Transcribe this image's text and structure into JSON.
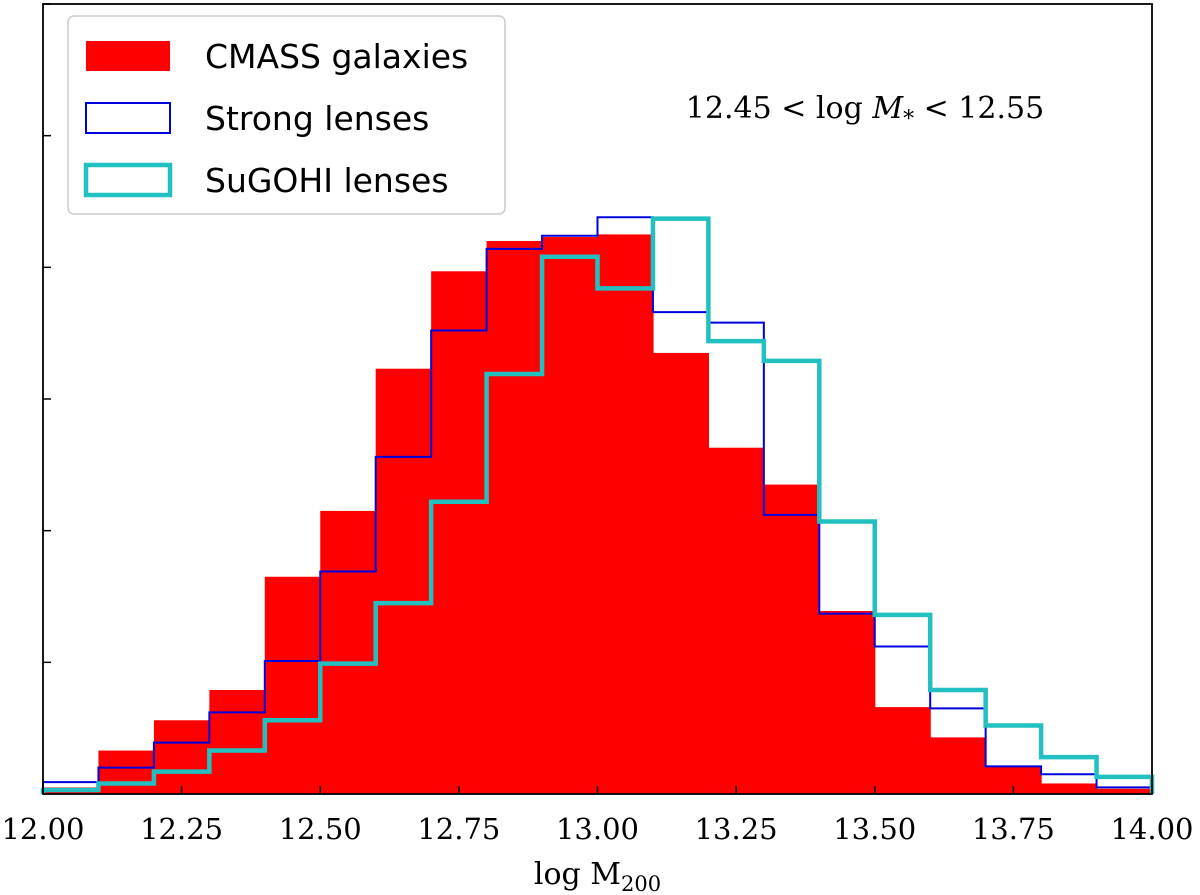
{
  "chart_data": {
    "type": "histogram",
    "xlabel": "log M",
    "xlabel_sub": "200",
    "ylabel": "",
    "xlim": [
      12.0,
      14.0
    ],
    "ylim": [
      0,
      0.6
    ],
    "x_ticks": [
      "12.00",
      "12.25",
      "12.50",
      "12.75",
      "13.00",
      "13.25",
      "13.50",
      "13.75",
      "14.00"
    ],
    "x_tick_values": [
      12.0,
      12.25,
      12.5,
      12.75,
      13.0,
      13.25,
      13.5,
      13.75,
      14.0
    ],
    "y_tick_values": [
      0.1,
      0.2,
      0.3,
      0.4,
      0.5,
      0.6
    ],
    "bin_edges": [
      12.0,
      12.1,
      12.2,
      12.3,
      12.4,
      12.5,
      12.6,
      12.7,
      12.8,
      12.9,
      13.0,
      13.1,
      13.2,
      13.3,
      13.4,
      13.5,
      13.6,
      13.7,
      13.8,
      13.9,
      14.0
    ],
    "annotation": {
      "left": "12.45",
      "mid_log": "log",
      "mid_m": "M",
      "mid_sub": "*",
      "right": "12.55",
      "lt": "<"
    },
    "series": [
      {
        "name": "CMASS galaxies",
        "style": "filled",
        "color": "#ff0000",
        "values": [
          0.005,
          0.033,
          0.056,
          0.079,
          0.165,
          0.215,
          0.323,
          0.397,
          0.42,
          0.423,
          0.425,
          0.335,
          0.263,
          0.235,
          0.139,
          0.066,
          0.043,
          0.021,
          0.008,
          0.004
        ]
      },
      {
        "name": "Strong lenses",
        "style": "step",
        "color": "#0000dd",
        "values": [
          0.009,
          0.02,
          0.039,
          0.062,
          0.101,
          0.169,
          0.256,
          0.352,
          0.414,
          0.424,
          0.438,
          0.366,
          0.358,
          0.212,
          0.137,
          0.112,
          0.065,
          0.021,
          0.015,
          0.005
        ]
      },
      {
        "name": "SuGOHI lenses",
        "style": "step",
        "color": "#22c0c0",
        "values": [
          0.003,
          0.008,
          0.017,
          0.033,
          0.056,
          0.099,
          0.145,
          0.222,
          0.319,
          0.408,
          0.384,
          0.437,
          0.344,
          0.329,
          0.207,
          0.136,
          0.079,
          0.052,
          0.028,
          0.013
        ]
      }
    ]
  }
}
